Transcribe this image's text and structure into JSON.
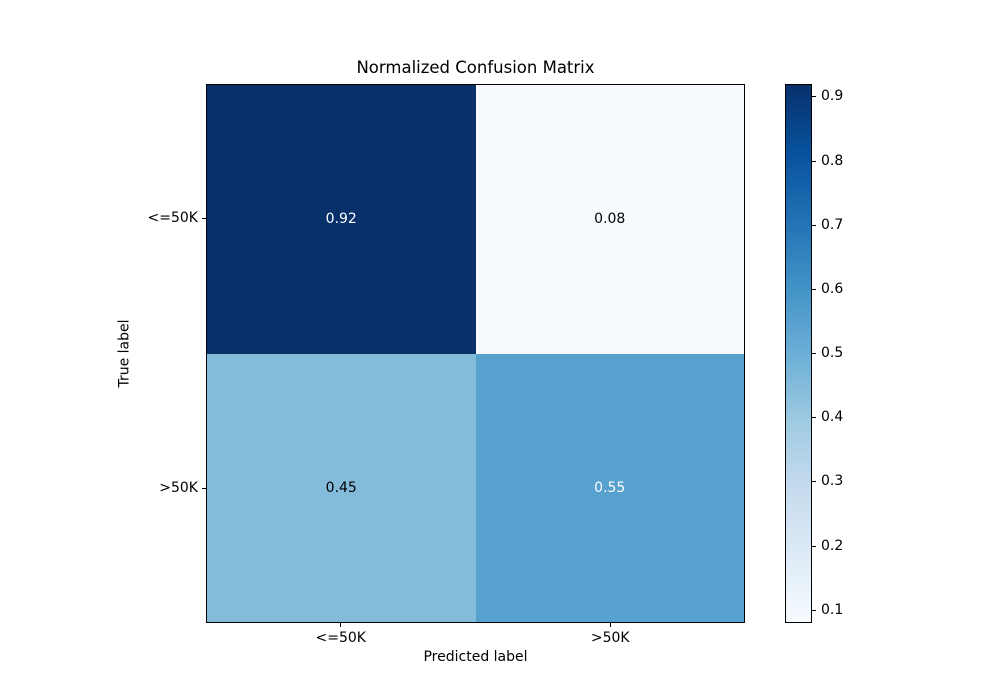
{
  "chart_data": {
    "type": "heatmap",
    "title": "Normalized Confusion Matrix",
    "xlabel": "Predicted label",
    "ylabel": "True label",
    "x_tick_labels": [
      "<=50K",
      ">50K"
    ],
    "y_tick_labels": [
      "<=50K",
      ">50K"
    ],
    "matrix": [
      [
        0.92,
        0.08
      ],
      [
        0.45,
        0.55
      ]
    ],
    "cell_text": [
      [
        "0.92",
        "0.08"
      ],
      [
        "0.45",
        "0.55"
      ]
    ],
    "cell_colors": [
      [
        "#08306b",
        "#f7fbff"
      ],
      [
        "#83bbdb",
        "#57a1ce"
      ]
    ],
    "cell_text_colors": [
      [
        "#ffffff",
        "#000000"
      ],
      [
        "#000000",
        "#ffffff"
      ]
    ],
    "colormap": "Blues",
    "colorbar": {
      "vmin": 0.08,
      "vmax": 0.92,
      "tick_values": [
        0.9,
        0.8,
        0.7,
        0.6,
        0.5,
        0.4,
        0.3,
        0.2,
        0.1
      ],
      "tick_labels": [
        "0.9",
        "0.8",
        "0.7",
        "0.6",
        "0.5",
        "0.4",
        "0.3",
        "0.2",
        "0.1"
      ],
      "gradient_top_to_bottom": [
        "#08306b",
        "#08519c",
        "#2171b5",
        "#4292c6",
        "#6baed6",
        "#9ecae1",
        "#c6dbef",
        "#deebf7",
        "#f7fbff"
      ]
    },
    "layout": {
      "grid": "off",
      "legend": "none",
      "background_color": "#ffffff",
      "spine_color": "#000000",
      "text_color": "#000000"
    }
  }
}
